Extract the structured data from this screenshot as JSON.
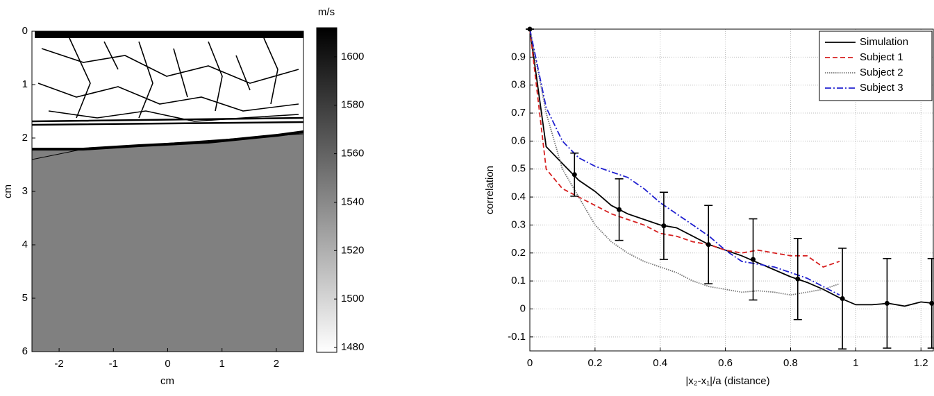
{
  "chart_data": [
    {
      "type": "image",
      "xlabel": "cm",
      "ylabel": "cm",
      "xlim": [
        -2.5,
        2.5
      ],
      "xticks": [
        -2,
        -1,
        0,
        1,
        2
      ],
      "ylim": [
        6,
        0
      ],
      "yticks": [
        0,
        1,
        2,
        3,
        4,
        5,
        6
      ],
      "colorbar": {
        "label": "m/s",
        "clim": [
          1478,
          1612
        ],
        "ticks": [
          1480,
          1500,
          1520,
          1540,
          1560,
          1580,
          1600
        ],
        "colors": [
          "#ffffff",
          "#000000"
        ]
      }
    },
    {
      "type": "line",
      "xlabel": "|x₂-x₁|/a (distance)",
      "ylabel": "correlation",
      "xlim": [
        0,
        1.24
      ],
      "xticks": [
        0,
        0.2,
        0.4,
        0.6,
        0.8,
        1,
        1.2
      ],
      "ylim": [
        -0.15,
        1.0
      ],
      "yticks": [
        -0.1,
        0,
        0.1,
        0.2,
        0.3,
        0.4,
        0.5,
        0.6,
        0.7,
        0.8,
        0.9
      ],
      "grid": true,
      "legend": "upper right",
      "x": [
        0,
        0.05,
        0.1,
        0.15,
        0.2,
        0.25,
        0.3,
        0.35,
        0.4,
        0.45,
        0.5,
        0.55,
        0.6,
        0.65,
        0.7,
        0.75,
        0.8,
        0.85,
        0.9,
        0.95,
        1.0,
        1.05,
        1.1,
        1.15,
        1.2,
        1.24
      ],
      "series": [
        {
          "name": "Simulation",
          "color": "#000000",
          "dash": "solid",
          "values": [
            1.0,
            0.58,
            0.52,
            0.46,
            0.42,
            0.37,
            0.34,
            0.32,
            0.3,
            0.29,
            0.26,
            0.23,
            0.21,
            0.19,
            0.165,
            0.14,
            0.115,
            0.095,
            0.07,
            0.04,
            0.015,
            0.015,
            0.02,
            0.01,
            0.025,
            0.02
          ]
        },
        {
          "name": "Subject 1",
          "color": "#d62020",
          "dash": "dashed",
          "values": [
            1.0,
            0.5,
            0.43,
            0.4,
            0.37,
            0.34,
            0.32,
            0.3,
            0.27,
            0.26,
            0.24,
            0.23,
            0.21,
            0.2,
            0.21,
            0.2,
            0.19,
            0.19,
            0.15,
            0.17,
            null,
            null,
            null,
            null,
            null,
            null
          ]
        },
        {
          "name": "Subject 2",
          "color": "#777777",
          "dash": "dotted",
          "values": [
            1.0,
            0.7,
            0.5,
            0.4,
            0.3,
            0.24,
            0.2,
            0.17,
            0.15,
            0.13,
            0.1,
            0.08,
            0.07,
            0.06,
            0.065,
            0.06,
            0.05,
            0.06,
            0.07,
            0.09,
            null,
            null,
            null,
            null,
            null,
            null
          ]
        },
        {
          "name": "Subject 3",
          "color": "#2020d0",
          "dash": "dashdot",
          "values": [
            1.0,
            0.72,
            0.6,
            0.54,
            0.51,
            0.49,
            0.47,
            0.43,
            0.38,
            0.34,
            0.3,
            0.26,
            0.21,
            0.17,
            0.16,
            0.15,
            0.13,
            0.11,
            0.08,
            0.05,
            null,
            null,
            null,
            null,
            null,
            null
          ]
        }
      ],
      "error_bars": {
        "color": "#000000",
        "x": [
          0,
          0.137,
          0.274,
          0.411,
          0.548,
          0.685,
          0.822,
          0.959,
          1.096,
          1.233
        ],
        "values": [
          1.0,
          0.48,
          0.355,
          0.297,
          0.23,
          0.177,
          0.107,
          0.037,
          0.02,
          0.02
        ],
        "errors": [
          0,
          0.077,
          0.11,
          0.12,
          0.14,
          0.145,
          0.145,
          0.18,
          0.16,
          0.16
        ]
      }
    }
  ]
}
